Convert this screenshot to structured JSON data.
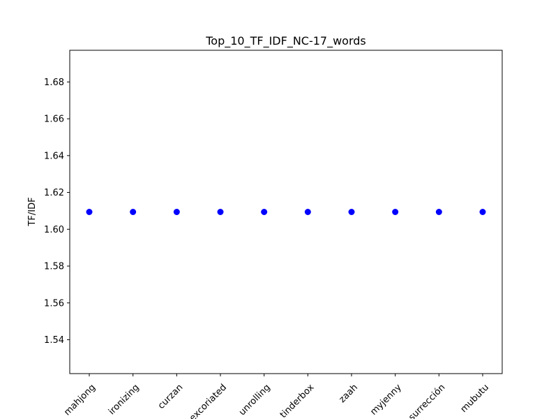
{
  "chart_data": {
    "type": "scatter",
    "title": "Top_10_TF_IDF_NC-17_words",
    "xlabel": "",
    "ylabel": "TF/IDF",
    "categories": [
      "mahjong",
      "ironizing",
      "curzan",
      "excoriated",
      "unrolling",
      "tinderbox",
      "zaah",
      "myjenny",
      "surrección",
      "mubutu"
    ],
    "values": [
      1.6094,
      1.6094,
      1.6094,
      1.6094,
      1.6094,
      1.6094,
      1.6094,
      1.6094,
      1.6094,
      1.6094
    ],
    "ylim": [
      1.5216,
      1.6972
    ],
    "yticks": [
      "1.54",
      "1.56",
      "1.58",
      "1.60",
      "1.62",
      "1.64",
      "1.66",
      "1.68"
    ],
    "grid": false,
    "legend": "none",
    "marker_color": "#0000ff"
  }
}
